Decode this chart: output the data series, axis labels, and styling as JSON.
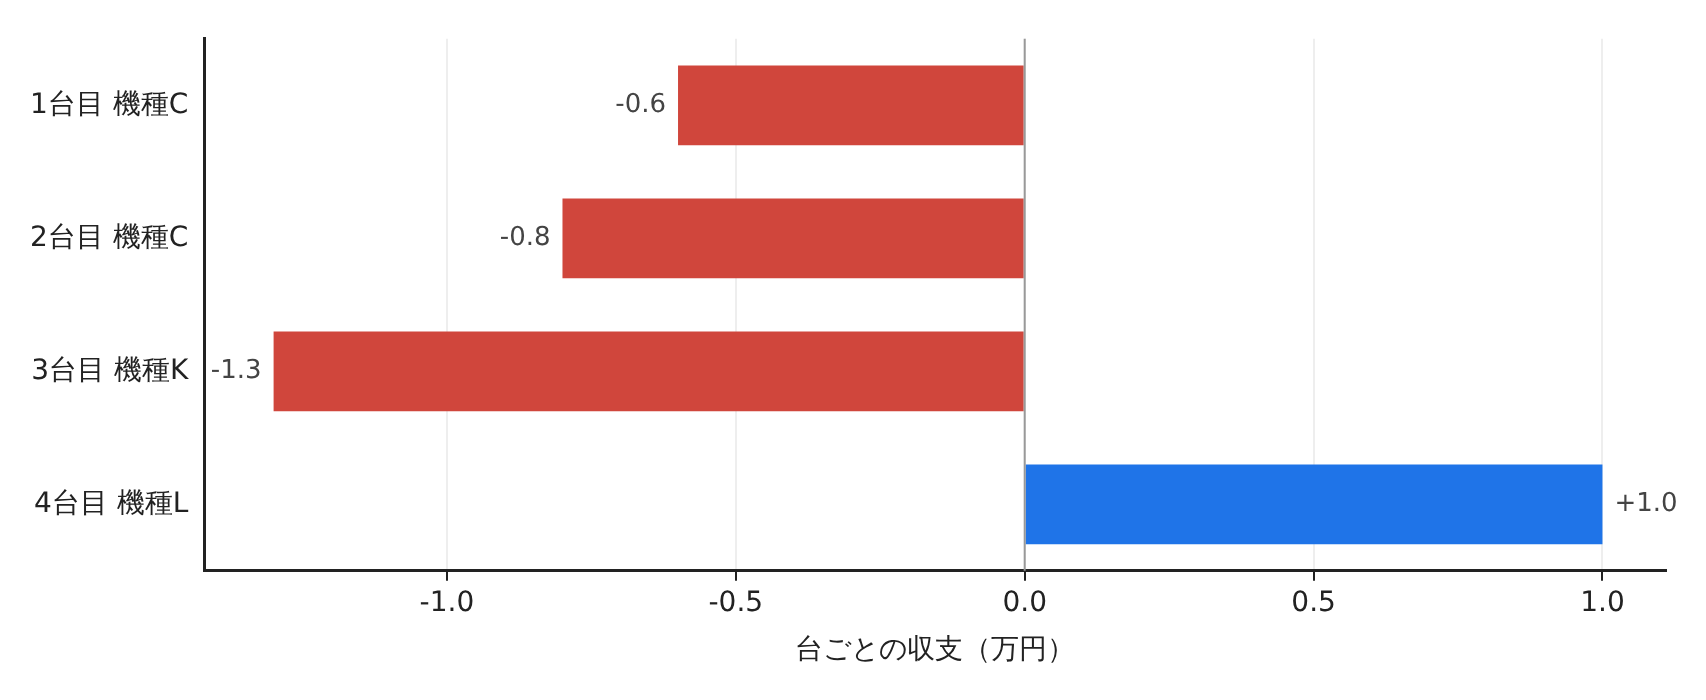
{
  "chart_data": {
    "type": "bar",
    "orientation": "horizontal",
    "xlabel": "台ごとの収支（万円）",
    "categories": [
      "1台目 機種C",
      "2台目 機種C",
      "3台目 機種K",
      "4台目 機種L"
    ],
    "values": [
      -0.6,
      -0.8,
      -1.3,
      1.0
    ],
    "colors": [
      "#d0463c",
      "#d0463c",
      "#d0463c",
      "#1f74e8"
    ],
    "value_labels": [
      "-0.6",
      "-0.8",
      "-1.3",
      "+1.0"
    ],
    "xlim": [
      -1.42,
      1.11
    ],
    "xticks": [
      {
        "value": -1,
        "label": "-1.0"
      },
      {
        "value": -0.5,
        "label": "-0.5"
      },
      {
        "value": 0,
        "label": "0.0"
      },
      {
        "value": 0.5,
        "label": "0.5"
      },
      {
        "value": 1,
        "label": "1.0"
      }
    ],
    "grid": "x",
    "legend": false,
    "ref_lines": [
      {
        "axis": "x",
        "value": 0,
        "color": "#999999"
      }
    ]
  }
}
